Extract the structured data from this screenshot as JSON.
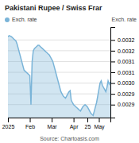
{
  "chart_data": {
    "type": "area",
    "title": "Pakistani Rupee / Swiss Frar",
    "ylabel": "Exch. rate",
    "source": "Source: Chartoasis.com",
    "legend": "top",
    "grid": true,
    "categories": [
      "2025",
      null,
      null,
      null,
      null,
      null,
      null,
      null,
      null,
      null,
      null,
      null,
      null,
      null,
      null,
      null,
      null,
      null,
      null,
      "Feb",
      null,
      null,
      null,
      null,
      null,
      null,
      null,
      null,
      null,
      null,
      null,
      null,
      null,
      null,
      null,
      null,
      null,
      null,
      "Mar",
      null,
      null,
      null,
      null,
      null,
      null,
      null,
      null,
      null,
      null,
      null,
      null,
      null,
      null,
      null,
      null,
      null,
      null,
      "Apr",
      null,
      null,
      null,
      null,
      null,
      null,
      null,
      null,
      null,
      null,
      null,
      "25",
      null,
      null,
      null,
      null,
      null,
      null,
      null,
      null,
      null,
      "May",
      null,
      null,
      null,
      null,
      null,
      null,
      null,
      null,
      null,
      null
    ],
    "ylim": [
      0.00284,
      0.00326
    ],
    "yticks": [
      0.0029,
      {
        "value": 0.00295,
        "label": "0.0029"
      },
      {
        "value": 0.003,
        "label": "0.0030"
      },
      {
        "value": 0.00305,
        "label": "0.0031"
      },
      {
        "value": 0.0031,
        "label": "0.0031"
      },
      {
        "value": 0.00315,
        "label": "0.0032"
      },
      0.0032
    ],
    "series": [
      {
        "name": "Exch. rate",
        "color": "#7ab4d8",
        "values": [
          0.003215,
          0.00322,
          0.003218,
          0.003215,
          0.00321,
          0.003205,
          0.0032,
          0.003195,
          0.00318,
          0.00316,
          0.00314,
          0.00312,
          0.0031,
          0.00308,
          0.00306,
          0.003055,
          0.00305,
          0.003045,
          0.00304,
          0.003035,
          0.0029,
          0.0031,
          0.00315,
          0.00316,
          0.003165,
          0.00317,
          0.003175,
          0.003175,
          0.00317,
          0.003165,
          0.00316,
          0.003155,
          0.00315,
          0.003145,
          0.00314,
          0.003135,
          0.00313,
          0.00312,
          0.00311,
          0.0031,
          0.00308,
          0.00306,
          0.00304,
          0.00302,
          0.003,
          0.00298,
          0.00296,
          0.00295,
          0.00294,
          0.002935,
          0.00293,
          0.00294,
          0.00295,
          0.00296,
          0.002965,
          0.00292,
          0.00291,
          0.0029,
          0.002895,
          0.00289,
          0.002885,
          0.00288,
          0.002875,
          0.00287,
          0.00288,
          0.00289,
          0.002895,
          0.0029,
          0.002895,
          0.00289,
          0.00288,
          0.00287,
          0.00286,
          0.002855,
          0.00285,
          0.00287,
          0.00289,
          0.00291,
          0.00294,
          0.00297,
          0.003,
          0.00301,
          0.00299,
          0.00298,
          0.00297,
          0.00296,
          0.00298,
          0.00301,
          0.002995,
          0.003005
        ]
      }
    ]
  }
}
